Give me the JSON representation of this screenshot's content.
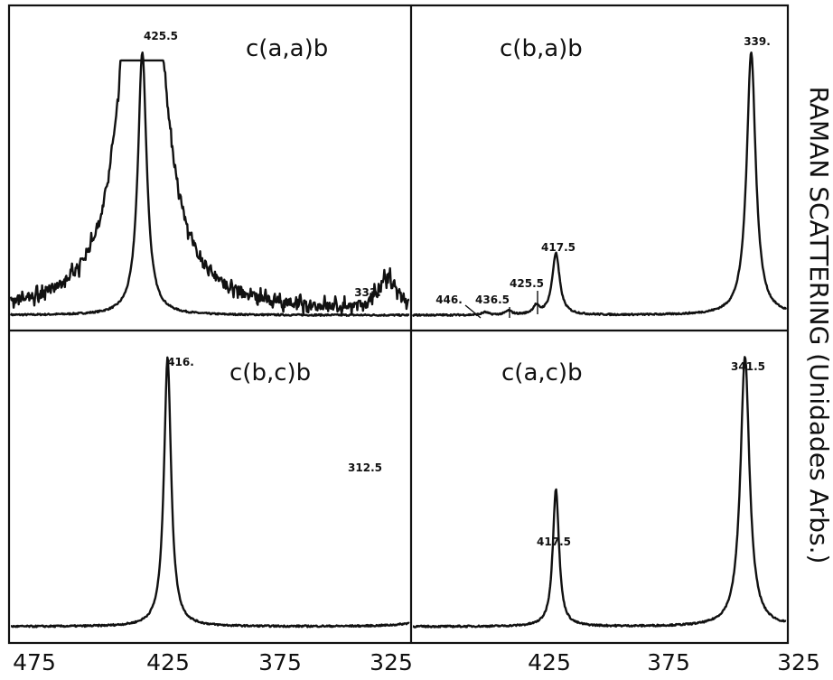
{
  "chart_data": {
    "type": "line",
    "ylabel": "RAMAN SCATTERING (Unidades Arbs.)",
    "xlabel": "",
    "x_ticks": [
      "475",
      "425",
      "375",
      "325",
      "425",
      "375",
      "325"
    ],
    "grid": false,
    "panels": [
      {
        "id": "aab",
        "title": "c(a,a)b",
        "xlim": [
          475,
          325
        ],
        "peaks": [
          {
            "x": 425.5,
            "label": "425.5",
            "height": 1.0,
            "width": 2.2
          },
          {
            "x": 333,
            "label": "333.",
            "height": 0.0,
            "width": 2.0
          }
        ],
        "series": [
          {
            "name": "",
            "kind": "narrow",
            "baseline": 0.02,
            "peaks": [
              {
                "x": 425.5,
                "h": 0.98,
                "w": 2.0
              }
            ]
          },
          {
            "name": "",
            "kind": "noisy",
            "baseline": 0.03,
            "clip": 0.97,
            "peaks": [
              {
                "x": 425.5,
                "h": 2.2,
                "w": 7.0
              },
              {
                "x": 333,
                "h": 0.1,
                "w": 4.0
              }
            ]
          }
        ]
      },
      {
        "id": "bab",
        "title": "c(b,a)b",
        "xlim": [
          475,
          325
        ],
        "peaks": [
          {
            "x": 446,
            "label": "446."
          },
          {
            "x": 436.5,
            "label": "436.5"
          },
          {
            "x": 425.5,
            "label": "425.5"
          },
          {
            "x": 417.5,
            "label": "417.5"
          },
          {
            "x": 339,
            "label": "339."
          }
        ],
        "series": [
          {
            "name": "",
            "kind": "narrow",
            "baseline": 0.02,
            "peaks": [
              {
                "x": 446,
                "h": 0.01,
                "w": 1.5
              },
              {
                "x": 436.5,
                "h": 0.015,
                "w": 1.5
              },
              {
                "x": 425.5,
                "h": 0.03,
                "w": 1.5
              },
              {
                "x": 417.5,
                "h": 0.23,
                "w": 1.8
              },
              {
                "x": 339,
                "h": 0.98,
                "w": 2.2
              }
            ]
          }
        ]
      },
      {
        "id": "bcb",
        "title": "c(b,c)b",
        "xlim": [
          475,
          325
        ],
        "peaks": [
          {
            "x": 416,
            "label": "416."
          },
          {
            "x": 312.5,
            "label": "312.5"
          }
        ],
        "series": [
          {
            "name": "",
            "kind": "narrow",
            "baseline": 0.02,
            "peaks": [
              {
                "x": 416,
                "h": 0.98,
                "w": 1.6
              },
              {
                "x": 312.5,
                "h": 0.66,
                "w": 1.8
              }
            ]
          }
        ]
      },
      {
        "id": "acb",
        "title": "c(a,c)b",
        "xlim": [
          475,
          325
        ],
        "peaks": [
          {
            "x": 417.5,
            "label": "417.5"
          },
          {
            "x": 341.5,
            "label": "341.5"
          }
        ],
        "series": [
          {
            "name": "",
            "kind": "narrow",
            "baseline": 0.02,
            "peaks": [
              {
                "x": 417.5,
                "h": 0.5,
                "w": 1.5
              },
              {
                "x": 341.5,
                "h": 0.98,
                "w": 2.2
              }
            ]
          }
        ]
      }
    ]
  }
}
